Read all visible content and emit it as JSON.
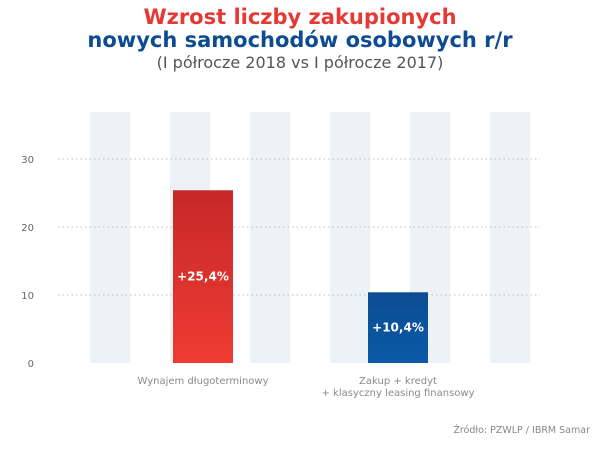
{
  "title_line1": "Wzrost liczby zakupionych",
  "title_line2": "nowych samochodów osobowych r/r",
  "subtitle": "(I półrocze 2018 vs I półrocze 2017)",
  "source": "Źródło: PZWLP / IBRM Samar",
  "colors": {
    "title_red": "#e53935",
    "title_blue": "#0d4c92",
    "band": "#edf2f6",
    "grid": "#bdbdbd"
  },
  "chart_data": {
    "type": "bar",
    "categories": [
      [
        "Wynajem długoterminowy"
      ],
      [
        "Zakup + kredyt",
        "+ klasyczny leasing finansowy"
      ]
    ],
    "values": [
      25.4,
      10.4
    ],
    "data_labels": [
      "+25,4%",
      "+10,4%"
    ],
    "bar_colors": [
      [
        "#c62828",
        "#ef3b32"
      ],
      [
        "#0d4c92",
        "#0a5aa8"
      ]
    ],
    "yticks": [
      0,
      10,
      20,
      30
    ],
    "ylim": [
      0,
      30
    ],
    "grid": true,
    "title": "Wzrost liczby zakupionych nowych samochodów osobowych r/r",
    "xlabel": "",
    "ylabel": ""
  }
}
